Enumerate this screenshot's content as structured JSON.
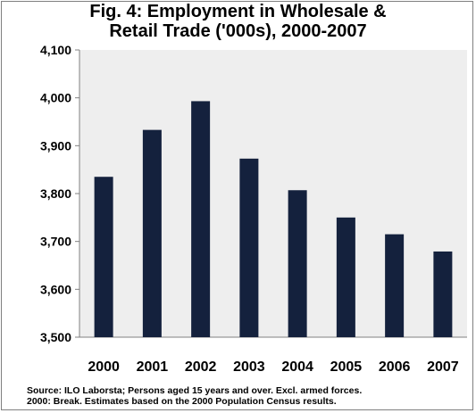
{
  "chart_data": {
    "type": "bar",
    "title_lines": [
      "Fig.  4: Employment in Wholesale &",
      "Retail Trade ('000s), 2000-2007"
    ],
    "categories": [
      "2000",
      "2001",
      "2002",
      "2003",
      "2004",
      "2005",
      "2006",
      "2007"
    ],
    "values": [
      3835,
      3933,
      3993,
      3873,
      3807,
      3750,
      3715,
      3679
    ],
    "ylim": [
      3500,
      4100
    ],
    "yticks": [
      3500,
      3600,
      3700,
      3800,
      3900,
      4000,
      4100
    ],
    "ytick_labels": [
      "3,500",
      "3,600",
      "3,700",
      "3,800",
      "3,900",
      "4,000",
      "4,100"
    ],
    "xlabel": "",
    "ylabel": "",
    "grid": false,
    "legend": "none",
    "bar_color": "#14213d",
    "plot_background": "#eeeeee"
  },
  "source_lines": [
    "Source: ILO Laborsta; Persons aged 15 years and over. Excl. armed forces.",
    "2000: Break. Estimates based on the 2000 Population Census results."
  ]
}
